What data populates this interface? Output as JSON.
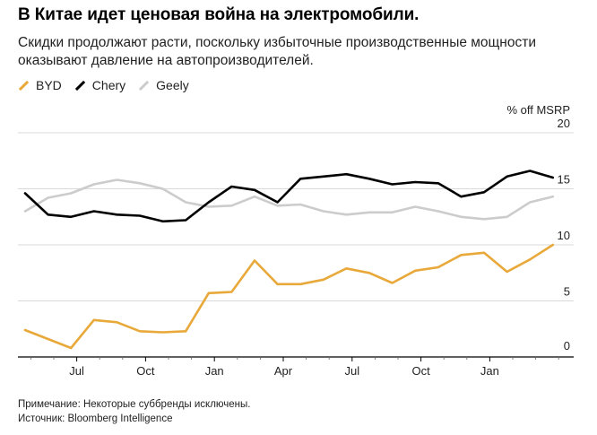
{
  "header": {
    "title": "В Китае идет ценовая война на электромобили.",
    "subtitle": "Скидки продолжают расти, поскольку избыточные производственные мощности оказывают давление на автопроизводителей."
  },
  "footer": {
    "note": "Примечание: Некоторые суббренды исключены.",
    "source": "Источник: Bloomberg Intelligence"
  },
  "chart_data": {
    "type": "line",
    "unit_label": "% off MSRP",
    "ylim": [
      0,
      20
    ],
    "y_ticks": [
      0,
      5,
      10,
      15,
      20
    ],
    "x_tick_labels": [
      "Jul",
      "Oct",
      "Jan",
      "Apr",
      "Jul",
      "Oct",
      "Jan"
    ],
    "x_tick_positions": [
      2.25,
      5.25,
      8.25,
      11.25,
      14.25,
      17.25,
      20.25
    ],
    "grid": "horizontal",
    "legend_placement": "top-left",
    "series": [
      {
        "name": "BYD",
        "color": "#E8A93A",
        "values": [
          2.4,
          1.6,
          0.8,
          3.3,
          3.1,
          2.3,
          2.2,
          2.3,
          5.7,
          5.8,
          8.6,
          6.5,
          6.5,
          6.9,
          7.9,
          7.5,
          6.6,
          7.7,
          8.0,
          9.1,
          9.3,
          7.6,
          8.7,
          10.0
        ]
      },
      {
        "name": "Chery",
        "color": "#000000",
        "values": [
          14.6,
          12.7,
          12.5,
          13.0,
          12.7,
          12.6,
          12.1,
          12.2,
          13.8,
          15.2,
          14.9,
          13.8,
          15.9,
          16.1,
          16.3,
          15.9,
          15.4,
          15.6,
          15.5,
          14.3,
          14.7,
          16.1,
          16.6,
          16.0
        ]
      },
      {
        "name": "Geely",
        "color": "#CCCCCC",
        "values": [
          13.0,
          14.2,
          14.6,
          15.4,
          15.8,
          15.5,
          15.0,
          13.8,
          13.4,
          13.5,
          14.3,
          13.5,
          13.6,
          13.0,
          12.7,
          12.9,
          12.9,
          13.4,
          13.0,
          12.5,
          12.3,
          12.5,
          13.8,
          14.3
        ]
      }
    ]
  },
  "colors": {
    "grid": "#d9d9d9",
    "axis": "#000000",
    "text": "#222222"
  }
}
